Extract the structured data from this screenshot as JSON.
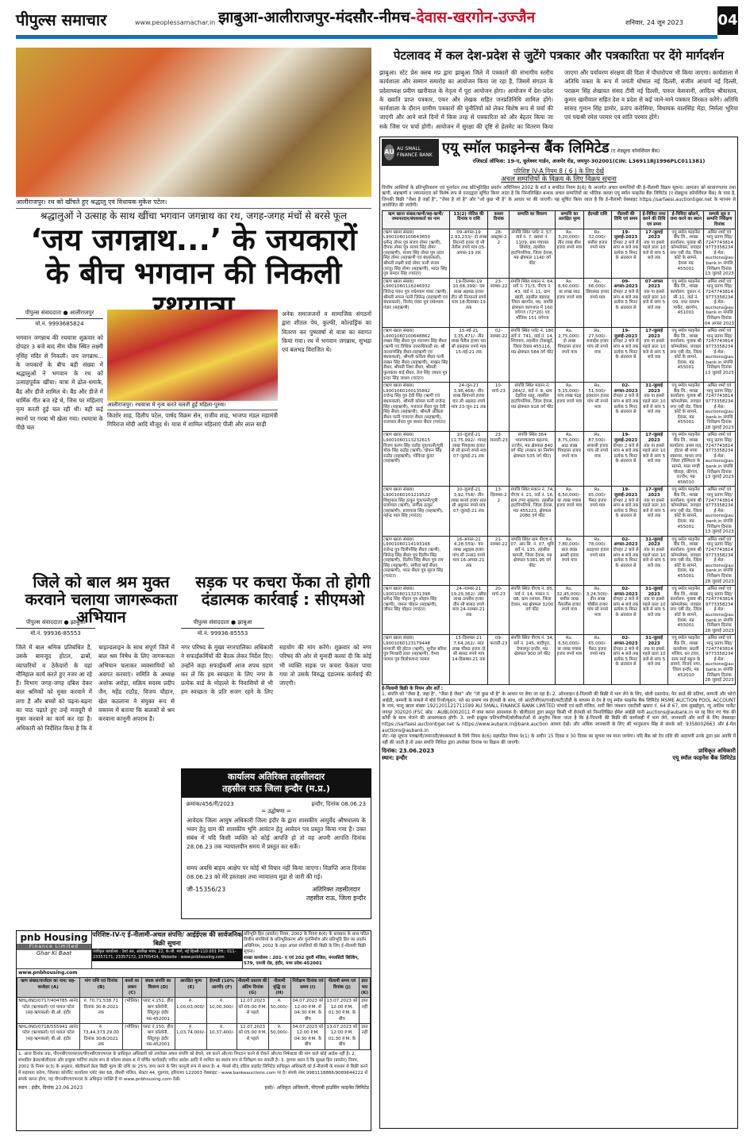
{
  "masthead": {
    "logo": "पीपुल्स समाचार",
    "url": "www.peoplessamachar.in",
    "editions_black": "झाबुआ-आलीराजपुर-मंदसौर-नीमच",
    "editions_red": "-देवास-खरगोन-उज्जैन",
    "date": "शनिवार, 24 जून 2023",
    "page": "04",
    "accent": "#1a6fb5",
    "red": "#c8102e"
  },
  "lead": {
    "photo_caption": "आलीराजपुर। रथ को खींचते हुए श्रद्धालु एवं विधायक मुकेश पटेल।",
    "kicker": "श्रद्धालुओं ने उत्साह के साथ खींचा भगवान जगन्नाथ का रथ, जगह-जगह मंचों से बरसे फूल",
    "headline": "‘जय जगन्नाथ...’ के जयकारों के बीच भगवान की निकली रथयात्रा",
    "byline": "पीपुल्स संवाददाता ● आलीराजपुर",
    "mobile": "मो.नं. 9993685824",
    "photo2_caption": "आलीराजपुर। रथयात्रा में नृत्य करते चलती हुईं महिला-पुरुष।",
    "body1": "भगवान जगन्नाथ की रथयात्रा शुक्रवार को दोपहर 3 बजे बाद नीम चौक स्थित लक्ष्मी नृसिंह मंदिर से निकली। जय जगन्नाथ... के जयकारों के बीच बड़ी संख्या में श्रद्धालुओं ने भगवान के रथ को उत्साहपूर्वक खींचा। यात्रा में ढोल-धमाके, बैंड और डीजे शामिल थे। बैंड और डीजे में धार्मिक गीत बज रहे थे, जिस पर महिलाएं नृत्य करती हुई चल रही थीं। वहीं कई स्थानों पर गरबा भी खेला गया। रथयात्रा के पीछे चल",
    "body2": "किशोर शाह, दिलीप पटेल, पार्षद विक्रम सेन, राजीव शाह, भाजपा मंडल महामंत्री गिरिराज मोदी आदि मौजूद थे। यात्रा में शामिल महिलाएं पीली और लाल साड़ी",
    "body3": "अनेक समाजजनों व सामाजिक संगठनों द्वारा शीतल पेय, कुल्फी, कोल्डड्रिंक का वितरण कर पुष्पवर्षा से यात्रा का स्वागत किया गया। रथ में भगवान जगन्नाथ, सुभद्रा एवं बलभद्र विराजित थे।"
  },
  "petlawad": {
    "headline": "पेटलावद में कल देश-प्रदेश से जुटेंगे पत्रकार और पत्रकारिता पर देंगे मार्गदर्शन",
    "body": "झाबुआ। स्टेट प्रेस क्लब मप्र द्वारा झाबुआ जिले में पत्रकारों की संभागीय स्तरीय कार्यशाला और सम्मान समारोह का आयोजन किया जा रहा है, जिसमें संगठन के प्रदेशाध्यक्ष प्रवीण खारीवाल के नेतृत्व में पूरा आयोजन होगा। आयोजन में देश-प्रदेश के ख्याति प्राप्त पत्रकार, एंकर और लेखक सहित जनप्रतिनिधि शामिल होंगे। कार्यशाला के दौरान ग्रामीण पत्रकारों की चुनौतियों को लेकर विशेष रूप से चर्चा की जाएगी और आने वाले दिनों में किस तरह से पत्रकारिता को और बेहतर किया जा सके जिस पर चर्चा होगी। आयोजन में सुरक्षा की दृष्टि से हेलमेट का वितरण किया जाएगा और पर्यावरण संरक्षण की दिशा में पौधारोपण भी किया जाएगा। कार्यशाला में अतिथि वक्ता के रूप में जयंती घोषाल नई दिल्ली, संजीव आचार्य नई दिल्ली, पराक्रम सिंह शेखावत संसद टीवी नई दिल्ली, पारुल केसवानी, आदित्य श्रीवास्तव, कुमार खारीवाल सहित देश व प्रदेश से कई जाने-माने पत्रकार शिरकत करेंगे। अतिथि सांसद गुमान सिंह डामोर, प्रताप करोसिया, विधायक वालसिंह मेड़ा, निर्मला भूरिया एवं पद्मश्री रमेश परमार एवं शांति परमार होंगे।"
  },
  "child_labour": {
    "headline": "जिले को बाल श्रम मुक्त करवाने चलाया जागरूकता अभियान",
    "byline": "पीपुल्स संवाददाता ● झाबुआ",
    "mobile": "मो.नं. 99936-85553",
    "body": "जिले में बाल श्रमिक प्रतिबंधित है, उसके बावजूद होटल, ढाबों, व्यापारियों व ठेकेदारों के यहां नौनिहाल कार्य करते हुए नजर आ रहे हैं। विभाग जगह-जगह दबिश देकर बाल श्रमिकों को मुक्त करवाने में लगा है और बच्चों को पढ़ना-बढ़ना का पाठ पढ़ाते हुए उन्हें मजदूरी से मुक्त करवाने का कार्य कर रहा है। अधिकारी को निर्देशित किया है कि वे चाइल्डलाइन के साथ संपूर्ण जिले में बाल श्रम निषेध के लिए जागरूकता अभियान चलाकर व्यवसायियों को अवगत करवाएं। समिति के अध्यक्ष अशोक अरोड़ा, सक्रिय सदस्य प्रदीप जैन, महेंद्र राठौड़, विजय चौहान, खेल कठलाना ने संयुक्त रूप से वक्तव्य में बताया कि बालकों से श्रम करवाना कानूनी अपराध है।"
  },
  "garbage": {
    "headline": "सड़क पर कचरा फेंका तो होगी दंडात्मक कार्रवाई : सीएमओ",
    "byline": "पीपुल्स संवाददाता ● झाबुआ",
    "mobile": "मो.नं. 99936-85553",
    "body": "नगर परिषद के मुख्य नगरपालिका अधिकारी ने सफाईकर्मियों की बैठक लेकर निर्देश दिए। उन्होंने कहा सफाईकर्मी आज शपथ ग्रहण कर लें कि हम स्वच्छता के लिए नगर के प्रत्येक वार्ड के मोहल्ले के निवासियों से भी हम स्वच्छता के प्रति सजग रहने के लिए सहयोग की मांग करेंगे। शुक्रवार को नगर परिषद की ओर से मुनादी करवा दी कि कोई भी व्यक्ति सड़क पर कचरा फेंकता पाया गया तो उसके विरुद्ध दंडात्मक कार्रवाई की जाएगी।"
  },
  "tahsildar": {
    "title1": "कार्यालय अतिरिक्त तहसीलदार",
    "title2": "तहसील राऊ जिला इन्दौर (म.प्र.)",
    "ref": "क्रमांक/456/री/2023",
    "date": "इन्दौर, दिनांक 08.06.23",
    "subject": "= उद्घोषणा =",
    "body": "आवेदक जिला आयुष अधिकारी जिला इंदौर के द्वारा शासकीय आयुर्वेद औषधालय के भवन हेतु ग्राम की शासकीय भूमि आवंटन हेतु आवेदन पत्र प्रस्तुत किया गया है। उक्त संबंध में यदि किसी व्यक्ति को कोई आपत्ति हो तो वह अपनी आपत्ति दिनांक 28.06.23 तक न्यायालयीन समय में प्रस्तुत कर सकेंं।",
    "body2": "समय अवधि बाहय आक्षेप पर कोई भी विचार नहीं किया जाएगा। विज्ञप्ति आज दिनांक 08.06.23 को मेरे हस्ताक्षर तथा न्यायालय मुद्रा से जारी की गई।",
    "code": "जी-15356/23",
    "sign1": "अतिरिक्त तहसीलदार",
    "sign2": "तहसील राऊ, जिला इन्दौर"
  },
  "pnb": {
    "logo": "pnb Housing",
    "logo_sub": "Finance Limited",
    "tagline": "Ghar Ki Baat",
    "title": "परिशिष्ट-IV-ए ई-नीलामी-अचल संपत्ति/ आईईएस की सार्वजनिक बिक्री सूचना",
    "law": "प्रतिभूति हित (प्रवर्तन) नियम, 2002 के नियम 8(6) के प्रावधान के साथ पठित वित्तीय संपत्तियों के प्रतिभूतिकरण और पुनर्निर्माण और प्रतिभूति हित का प्रवर्तन अधिनियम, 2002 के तहत अचल संपत्तियों की बिक्री के लिए ई-नीलामी बिक्री सूचना।",
    "regd": "पंजीकृत कार्यालय : 9वां तल, अंतरिक्ष भवन, 22, के.जी. मार्ग, नई दिल्ली-110 001 PH.: 011-23357171, 23357172, 23705414, Website : www.pnbhousing.com",
    "branch": "शाखा कार्यालय : 201- ए एवं 202 दूसरी मंजिल, मंगलसिटी बिल्डिंग, 579, एमजी रोड, इंदौर, मध्य प्रदेश-452001",
    "website": "www.pnbhousing.com",
    "headers": [
      "ऋण संख्या/कर्जदार का नाम/ सह-कर्जदार (A)",
      "मांग राशि एवं दिनांक (B)",
      "कब्जे का प्रकार (C)",
      "बंधक संपत्ति का विवरण (D)",
      "आरक्षित मूल्य (E)",
      "ईएमडी (10% आरपी) (F)",
      "नीलामी प्रस्ताव की अंतिम दिनांक (G)",
      "नीलामी वृद्धि दर (H)",
      "निरीक्षण दिनांक एवं समय (I)",
      "नीलामी समय एवं दिनांक (J)",
      "ज्ञात भार (K)"
    ],
    "rows": [
      [
        "NHL/IND/0717/404785 आनंद पटेल (ऋणकर्ता) एवं पायल पटेल (सह-ऋणकर्ता) बी.ओ. इंदौर",
        "रु. 70,71,538.71 दिनांक 30-8-2021 तक",
        "(भौतिक)",
        "प्लाट नं.151, हीरा बाग कॉलोनी, सिंदूरपुर इंदौर मप्र-452001",
        "रु. 1,00,03,000/-",
        "रु. 10,00,300/-",
        "12.07.2023 को 05:00 P.M. से पहले",
        "रु. 50,000/-",
        "04.07.2023 को 12:00 P.M. से 04:30 P.M. के बीच",
        "13.07.2023 को 12:00 P.M. 01:30 P.M. के बीच",
        "ज्ञात नहीं"
      ],
      [
        "NHL/IND/0718/555941 आनंद पटेल (ऋणकर्ता) एवं पायल पटेल (सह-ऋणकर्ता) बी.ओ. इंदौर",
        "रु. 73,44,373.29.00 दिनांक 30/8/2021 तक",
        "(भौतिक)",
        "प्लाट नं.150, हीरा बाग कॉलोनी, सिंदूरपुर इंदौर मप्र-452001",
        "रु. 1,03,74,000/-",
        "रु. 10,37,400/-",
        "12.07.2023 को 05:00 P.M. से पहले",
        "रु. 50,000/-",
        "04.07.2023 को 12:00 P.M. 04:30 P.M. के बीच",
        "13.07.2023 को 12:00 P.M. 01:30 P.M. के बीच",
        "ज्ञात नहीं"
      ]
    ],
    "notes": "1. आज दिनांक तक, पीएनबीएचएफएल/पीएनबीएचएफएल के प्राधिकृत अधिकारी को उपरोक्त अचल संपत्ति को बेचने, नष्ट करने और/या निपटान करने से रोकने और/या निषेधाज्ञा की मांग वाले कोई आदेश नहीं है। 2. संभावित क्रेता/बोलीदाता और इच्छुक पार्टियां स्वतंत्र रूप से कॉलम संख्या-K में वर्णित कार्यवाही/ पारित आदेश आदि में शामिल का स्वतंत्र रूप से निरीक्षण कर सकती है। 3. कृपया ध्यान दें कि सुरक्षा हित (प्रवर्तन) नियम, 2002 के नियम 9(3) के अनुसार, बोलीकर्ता क्रेता बिक्री मूल्य की राशि का 25% जमा करने के लिए कानूनी रूप से बाध्य है। 4. मेसर्स सी1 इंडिया प्राइवेट लिमिटेड प्राधिकृत अधिकारी को ई-नीलामी के माध्यम से बिक्री करने में सहायता करेगा, जिसका कॉर्पोरेट कार्यालय प्लॉट नंबर 68, तीसरी मंजिल, सेक्टर 44, गुड़गांव, हरियाणा 122003 वेबसाइट - www.bankeauctions.com पर है। संपर्क नंबर 9981118886/9089644222 से संपर्क करना होगा, यह पीएनबीएचएफएल के अधिकृत व्यक्ति हैं या www.pnbhousing.com देखें।",
    "place_date": "स्थान : इंदौर, दिनांक 23.06.2023",
    "signatory": "हस्ते/- अधिकृत अधिकारी, पीएनबी हाउसिंग फाइनेंस लिमिटेड"
  },
  "au_bank": {
    "logo": "AU SMALL FINANCE BANK",
    "logo_tag": "चलो आगे बढ़ें",
    "title": "एयू स्मॉल फाइनेन्स बैंक लिमिटेड",
    "title_sub": "(ए शेड्यूल्ड कॉमर्शियल बैंक)",
    "regd": "रजिस्टर्ड ऑफिस: 19-ए, धुलेश्वर गार्डन, अजमेर रोड, जयपुर-302001(CIN: L36911RJ1996PLC011381)",
    "appendix": "परिशिष्ट IV-A नियम 8 ( 6 ) के लिए देखें",
    "notice_title": "अचल सम्पत्तियों के विक्रय के लिए विक्रय सूचना",
    "intro": "वित्तीय आस्तियों के प्रतिभूतिकरण एवं पुनर्गठन तथा प्रतिभूतिहित प्रवर्तन अधिनियम 2002 के शर्त व सपठित नियम 8(6) के अन्तर्गत अचल सम्पत्तियों की ई-नीलामी विक्रय सूचना। आमजन को साधारणतया तथा ऋणी, सहऋणी व जमानतदार को विशेष रूप से एतदद्वारा सूचित किया जाता है कि निम्नलिखित बन्धक अचल सम्पत्तियों का भौतिक कब्जा एयू स्मॉल फाइनेंस बैंक लिमिटेड (ए शेड्यूल्ड कॉमर्शियल बैंक) के पास है, जिनकी बिक्री \"जैसा है जहाँ है\", \"जैसा है जो है\" और \"जो कुछ भी है\" के आधार पर की जाएगी। यह सूचित किया जाता है कि ई-नीलामी वेबसाइट https://sarfaesi.auctiontiger.net के माध्यम से आयोजित की जावेगी।",
    "headers": [
      "ऋण खाता संख्या/ऋणी/सह-ऋणी/जमानतदार/बंधककर्ता का नाम",
      "13(2) नोटिस की दिनांक व राशि",
      "कब्जा दिनांक",
      "सम्पत्ति का विवरण",
      "सम्पत्ति का आरक्षित मूल्य",
      "ईएमडी राशि",
      "नीलामी की तिथि एवं समय",
      "ई-निविदा जमा करने की तिथि एवं समय",
      "ई-निविदा खोलने, जमा करने का स्थान",
      "सम्पर्क सूत्र व सम्पत्ति निरीक्षण दिनांक"
    ],
    "label_account": "(ऋण खाता संख्या)",
    "auction_time": "दोपहर 2 बजे से सांय 4 बजे तक प्रत्येक 5 मिनट के अंतराल से",
    "bid_time": "तक या इससे पहले प्रातः 10 बजे से सांय 5 बजे तक",
    "contact": "अमित शर्मा एवं भानु प्रताप सिंह/ 7247743814 9773358234 ई-मेल: auctions@aubank.in संपत्ति निरीक्षण दिनांक",
    "rows": [
      {
        "acc": "L9001060100643650",
        "names": "धर्मेन्द्र तोमर पुत्र संजय तोमर (ऋणी), दीपक तोमर पुत्र संजय सिंह तोमर (सहऋणी), संजय सिंह तोमर पुत्र उदय सिंह तोमर (सहऋणी एवं बंधककर्ता), श्रीमती लक्ष्मी बाई तोमर पत्नी संजय (संजू) सिंह तोमर (सहऋणी), भादर सिंह पुत्र समदर सिंह (गारंटर)",
        "notice": "09-अगस्त-19 2,93,233/- दो लाख तिरानवे हजार दो सौ तेंतीस रुपये मात्र 05-अगस्त-19 तक",
        "poss": "28-अक्टूबर-22",
        "prop": "संपत्ति स्थित प्लॉट नं. 57, वार्ड नं. 7, खसरा नं. 1109, ग्राम पंचायत लिंबोदा, तहसील हाटपिपलिया, जिला देवास, मप्र क्षेत्रफल 1140 वर्ग फीट",
        "reserve": "Rs. 3,20,000/- तीन लाख बीस हजार रुपये मात्र",
        "emd": "Rs. 32,000/- बत्तीस हजार रुपये मात्र",
        "auction": "19-जुलाई-2023",
        "bid": "17-जुलाई 2023",
        "branch": "एयू स्मॉल फाइनेंस बैंक लि., शाखा कार्यालय: गुलाब श्री कॉम्पलेक्स, जवाहर नगर एबी रोड, जिला कोर्ट के सामने, देवास मप्र 455001",
        "insp": "13 जुलाई 2023"
      },
      {
        "acc": "L9001060116246932",
        "names": "जितेन्द्र पंवार पुत्र राधेश्याम पंवार (ऋणी), श्रीमती सपना पत्नी जितेन्द्र (सहऋणी एवं बंधककर्ता), विनोद पंवार पुत्र राधेश्याम पंवार (सहऋणी)",
        "notice": "19-दिसम्बर-19 10,68,399/- दस लाख अड़सठ हजार तीन सौ निन्यानवे रुपये मात्र 18-दिसम्बर-19 तक",
        "poss": "23-नवम्बर-22",
        "prop": "संपत्ति स्थित मकान नं. 64, सर्वे नं. 71/3, पीएच नं. 43, वार्ड नं. 11, ग्राम खांडी, तहसील बड़वाह जिला खरगोन, मप्र, संपत्ति क्षेत्रफल कागजात में 160 वर्गगज (72*20) एवं भौतिक 151 वर्गगज",
        "reserve": "Rs. 6,60,000/- छः लाख साठ हजार रुपये मात्र",
        "emd": "Rs. 66,000/- छियासठ हजार रुपये मात्र",
        "auction": "09-अगस्त-2023",
        "bid": "07-अगस्त 2023",
        "branch": "एयू स्मॉल फाइनेंस बैंक लि., शाखा कार्यालय: दुकान नं. सी-11, वार्ड नं. 09, राधा वल्लभ मार्केट, खरगोन, 451001",
        "insp": "04 अगस्त 2023"
      },
      {
        "acc": "L9001060100648862",
        "names": "लखन सिंह सैंधव पुत्र नारायण सिंह सैंधव (ऋणी एवं विधिक उत्तराधिकारी स्व. श्री नारायणसिंह सैंधव-सहऋणी एवं बंधककर्ता), श्रीमती कविता सैंधव पत्नी लखन सिंह सैंधव (सहऋणी), माखन सिंह सैंधव, श्रीमती निशा सैंधव, श्रीमती फूलकंवर बाई सैंधव, तेज सिंह जाधव पुत्र इन्दर सिंह जाधव (गारंटर)",
        "notice": "15-मई-21 3,35,471/- तीन लाख पैंतीस हजार चार सौ इकहत्तर रुपये मात्र 15-मई-21 तक",
        "poss": "02-नवम्बर-22",
        "prop": "संपत्ति स्थित प्लॉट नं. 180 सर्वे नं. 741, वार्ड नं. 14, शिवपाय, तहसील टोंकखुर्द, जिला देवास 455116, मप्र क्षेत्रफल 584 वर्ग फीट",
        "reserve": "Rs. 2,75,000/- दो लाख पिचहत्तर हजार रुपये मात्र",
        "emd": "Rs. 27,500/- सत्ताईस हजार पांच सौ रुपये मात्र",
        "auction": "19-जुलाई-2023",
        "bid": "17-जुलाई 2023",
        "branch": "एयू स्मॉल फाइनेंस बैंक लि., शाखा कार्यालय: गुलाब श्री कॉम्पलेक्स, जवाहर नगर एबी रोड, जिला कोर्ट के सामने, देवास, मप्र 455001",
        "insp": "13 जुलाई 2023"
      },
      {
        "acc": "L9001060100135892",
        "names": "राजेन्द्र सिंह पुत्र देवी सिंह (ऋणी एवं बंधककर्ता), श्रीमती कोमल पत्नी राजेन्द्र सिंह (सहऋणी), गजराज सैंधव पुत्र देवी सिंह सैंधव (सहऋणी), श्रीमती अंकिता सैंधव पत्नी गजराज सैंधव (सहऋणी), राजपाल सैंधव पुत्र कमल सैंधव (गारंटर)",
        "notice": "24-जून-21 3,96,468/- तीन लाख छियानवे हजार चार सौ अड़सठ रुपये मात्र 23-जून-21 तक",
        "poss": "10-मार्च-23",
        "prop": "संपत्ति स्थित मकान नं. 284/2, वार्ड नं. 8, ग्राम देहरिया साहू, तहसील हाटपिपलिया, जिला देवास, मप्र क्षेत्रफल 918 वर्ग फीट",
        "reserve": "Rs. 5,15,000/- पांच लाख पंद्रह हजार रुपये मात्र",
        "emd": "Rs. 51,500/- इक्यावन हजार पांच सौ रुपये मात्र",
        "auction": "02-अगस्त-2023",
        "bid": "31-जुलाई 2023",
        "branch": "एयू स्मॉल फाइनेंस बैंक लि., शाखा कार्यालय: गुलाब श्री कॉम्पलेक्स, जवाहर नगर एबी रोड, जिला कोर्ट के सामने, देवास, मप्र 455001",
        "insp": "28 जुलाई 2023"
      },
      {
        "acc": "L9001060113232615",
        "names": "विजय करण सिंह राठौड़ पुत्र/पत्नी/पुत्री चोक सिंह राठौड़ (ऋणी), चोकन सिंह राठौड़ (सहऋणी), गोविन्दा कुंवर (सहऋणी)",
        "notice": "10-जुलाई-21 11,75,992/- ग्यारह लाख पिचहत्तर हजार नौ सौ बानवे रुपये मात्र 07-जुलाई-21 तक",
        "poss": "23-जनवरी-23",
        "prop": "संपत्ति स्थित 364 भातपचलाना बड़नगर, उज्जैन, मप्र क्षेत्रफल 840 वर्ग फीट (मकान का निर्माण क्षेत्रफल 535 वर्ग फीट)",
        "reserve": "Rs. 8,75,000/- आठ लाख पिचहत्तर हजार रुपये मात्र",
        "emd": "Rs. 87,500/- सत्तासी हजार पांच सौ रुपये मात्र",
        "auction": "19-जुलाई-2023",
        "bid": "17-जुलाई 2023",
        "branch": "एयू स्मॉल फाइनेंस बैंक लि., शाखा कार्यालय: प्रथम तल, होटल श्री माया स्क्वायर, माधव नगर जिला हॉस्पिटल के सामने, मास मण्डी चौराहा, फ्रीगंज, उज्जैन, मप्र 456010",
        "insp": "13 जुलाई 2023"
      },
      {
        "acc": "L9001060101219522",
        "names": "शिशुपाल सिंह ठाकुर पुत्र/पत्नी/पुत्री प्रजापाल (ऋणी), संगीता ठाकुर (सहऋणी), प्रजापाल सिंह (सहऋणी), महेन्द्र पाल सिंह (गारंटर)",
        "notice": "10-जुलाई-21 3,92,758/- तीन लाख बानवे हजार सात सौ अट्ठावन रुपये मात्र 07-जुलाई-21 तक",
        "poss": "13-दिसम्बर-22",
        "prop": "संपत्ति स्थित मकान नं. 74, पीएच नं. 21, वार्ड नं. 16, ग्राम टप्पा सुकल्या, तहसील हाटपिपलिया, जिला देवास, मप्र 455223, क्षेत्रफल 2080 वर्ग फीट",
        "reserve": "Rs. 6,50,000/- छः लाख पचास हजार रुपये मात्र",
        "emd": "Rs. 65,000/- पैंसठ हजार रुपये मात्र",
        "auction": "19-जुलाई-2023",
        "bid": "17-जुलाई 2023",
        "branch": "एयू स्मॉल फाइनेंस बैंक लि., शाखा कार्यालय: गुलाब श्री कॉम्पलेक्स, जवाहर नगर एबी रोड, जिला कोर्ट के सामने, देवास, मप्र 455001",
        "insp": "13 जुलाई 2023"
      },
      {
        "acc": "L9001060114193166",
        "names": "राजेन्द्र पुत्र दिलीपसिंह सैंधव (ऋणी), जितेन्द्र सिंह सैंधव पुत्र दिलीप सिंह (सहऋणी), दिलीप सिंह सैंधव पुत्र राम सिंह (सहऋणी), संगीता बाई सैंधव (सहऋणी), भरत सैंधव पुत्र सूरज सिंह (गारंटर)",
        "notice": "16-अगस्त-21 4,28,559/- चार लाख अट्ठाइस हजार पांच सौ उनसठ रुपये मात्र 16-अगस्त-21 तक",
        "poss": "21-नवम्बर-22",
        "prop": "संपत्ति स्थित ग्राम पीएच नं. 07, आर.सि. नं. 07, भूमि सर्वे नं. 135, तहसील बागली, जिला देवास, मप्र क्षेत्रफल 5381.95 वर्ग फीट",
        "reserve": "Rs. 7,80,000/- सात लाख अस्सी हजार रुपये मात्र",
        "emd": "Rs. 78,000/- अठहत्तर हजार रुपये मात्र",
        "auction": "02-अगस्त-2023",
        "bid": "31-जुलाई 2023",
        "branch": "एयू स्मॉल फाइनेंस बैंक लि., शाखा कार्यालय: गुलाब श्री कॉम्पलेक्स, जवाहर नगर एबी रोड, जिला कोर्ट के सामने, देवास, मप्र 455001",
        "insp": "28 जुलाई 2023"
      },
      {
        "acc": "L9001060113231398",
        "names": "धर्मेन्द्र सिंह चौहान पुत्र सोहान सिंह (ऋणी), जमना चौहान (सहऋणी), जीवन सिंह चौहान (गारंटर)",
        "notice": "24-नवम्बर-21 19,29,362/- उन्नीस लाख उनतीस हजार तीन सौ बासठ रुपये मात्र 24-नवम्बर-21 तक",
        "poss": "20-मार्च-23",
        "prop": "संपत्ति स्थित पीएच नं. 85, वार्ड नं. 14, मकान नं. 08, ग्राम रनायरा, जिला देवास, मप्र क्षेत्रफल 3200 वर्ग फीट",
        "reserve": "Rs. 32,45,000/- बत्तीस लाख पैंतालीस हजार रुपये मात्र",
        "emd": "Rs. 3,24,500/- तीन लाख चौबीस हजार पांच सौ रुपये मात्र",
        "auction": "02-अगस्त-2023",
        "bid": "31-जुलाई 2023",
        "branch": "एयू स्मॉल फाइनेंस बैंक लि., शाखा कार्यालय: गुलाब श्री कॉम्पलेक्स, जवाहर नगर एबी रोड, जिला कोर्ट के सामने, देवास, मप्र 455001",
        "insp": "28 जुलाई 2023"
      },
      {
        "acc": "L9001060123179448",
        "names": "मामाजी की होटल (ऋणी), सुनील बरिया पुत्र गिरधारी लाल (सहऋणी), वैभव परमार पुत्र त्रिलोकचन्द परमार",
        "notice": "15-दिसम्बर-21 7,64,262/- सात लाख चौंसठ हजार दो सौ बासठ रुपये मात्र 14-दिसम्बर-21 तक",
        "poss": "09-फरवरी-23",
        "prop": "संपत्ति स्थित पीएच नं. 34, सर्वे नं. 245, बादीपुरा, देपालपुर इन्दौर, मप्र क्षेत्रफल 900 वर्ग फीट",
        "reserve": "Rs. 6,50,000/- छः लाख पचास हजार रुपये मात्र",
        "emd": "Rs. 65,000/- पैंसठ हजार रुपये मात्र",
        "auction": "02-अगस्त-2023",
        "bid": "31-जुलाई 2023",
        "branch": "एयू स्मॉल फाइनेंस बैंक लि., शाखा कार्यालय: छठवीं मंजिल, धन टावर, सत्य साईं स्कूल के सामने, विजय नगर, जिला इन्दौर, मप्र 452010",
        "insp": "28 जुलाई 2023"
      }
    ],
    "terms_title": "ई-निलामी बिक्री के नियम और शर्तें :",
    "terms": "1. संपत्ति को \"जैसा है, जहां है\", \"जैसा है जैसा\" और \"जो कुछ भी है\" के आधार पर बेचा जा रहा है। 2. ऑनलाइन ई-निलामी की बिक्री में भाग लेने के लिए, बोली दस्तावेज, पैन कार्ड की प्रतियां, कम्पनी और फोटो आईडी, कम्पनी के मामले में बोर्ड रिजॉल्यूशन, पते का प्रमाण पत्र ईएमडी के साथ, जो आरटीजीएस/एनईएफटी/डीडी के माध्यम से देय है एयू स्मॉल फाइनेंस बैंक लिमिटेड MSME AUCTION POOL ACCOUNT के नाम, चालू खाता संख्या 1921201121711599 AU SMALL FINANCE BANK LIMITED पांचवीं एवं छठी मंजिल, सनी बिग जंक्शन एसटीसी खसरा नं. 64 से 67, ग्राम सुखईपुरा, न्यू आतिश मार्केट जयपुर 302020 IFSC कोड : AUBL0002011 में जमा करना आवश्यक है। बोलीदाता द्वारा प्रस्तुत किसी भी ईएमडी को निम्नलिखित ईमेल आईडी यानी auctions@aubank.in पर रद्द किए गए चेक की कॉपी के साथ भेजने की आवश्यकता होगी। 3. सभी इच्छुक प्रतिभागियों/बोलीकर्ताओं से अनुरोध किया जाता है कि ई-निलामी की बिक्री की कार्यवाही में भाग लेने, जानकारी और शर्तों के लिए वेबसाइट https://sarfaesi.auctiontiger.net & https://www.aubank.in@bank.auction अवश्य देखें। और अधिक जानकारी के लिए श्री भानुप्रताप सिंह से संपर्क करें: 9358002663 और ई-मेल auctions@aubank.in",
    "note": "नोट:-यह सूचना पत्रऋणी/जमानती/बंधककर्ता के लिये नियम 8(6) सहपठित नियम 9(1) के अधीन 15 दिवस व 30 दिवस का सूचना पत्र माना जायेगा। यदि बैंक को देय राशि की अदायगी उनके द्वारा इस अवधि में नहीं की जाती है तो उक्त संपत्ति निविदा द्वारा उपरोक्त दिनांक पर विक्रय की जाएगी।",
    "date": "दिनांक: 23.06.2023",
    "place": "स्थान: इन्दौर",
    "sign1": "प्राधिकृत अधिकारी",
    "sign2": "एयू स्मॉल फाइनेंस बैंक लिमिटेड"
  }
}
